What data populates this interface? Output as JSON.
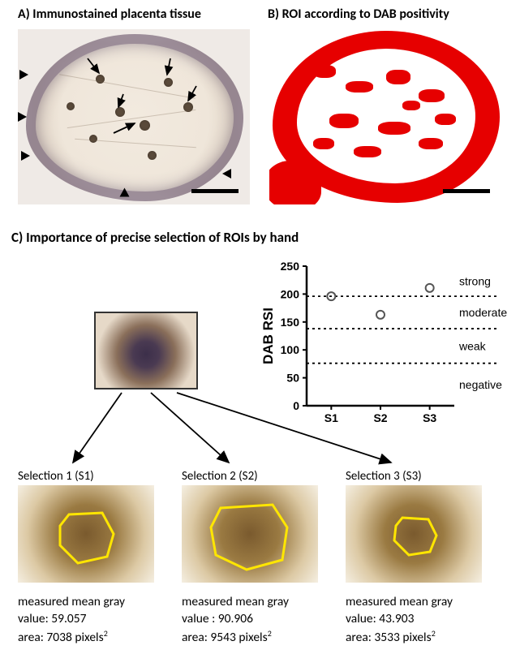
{
  "panelA": {
    "title": "A)   Immunostained placenta tissue"
  },
  "panelB": {
    "title": "B)   ROI according to DAB positivity"
  },
  "panelC": {
    "title": "C) Importance of precise selection of ROIs by hand",
    "chart": {
      "type": "scatter",
      "ylabel": "DAB RSI",
      "ylim": [
        0,
        250
      ],
      "ytick_step": 50,
      "yticks": [
        0,
        50,
        100,
        150,
        200,
        250
      ],
      "xticks": [
        "S1",
        "S2",
        "S3"
      ],
      "points": [
        {
          "x": "S1",
          "y": 196
        },
        {
          "x": "S2",
          "y": 163
        },
        {
          "x": "S3",
          "y": 211
        }
      ],
      "bands": [
        {
          "label": "strong",
          "y": 196
        },
        {
          "label": "moderate",
          "y": 138
        },
        {
          "label": "weak",
          "y": 76
        },
        {
          "label": "negative",
          "y": 30
        }
      ],
      "marker_color": "#555555",
      "marker_style": "open-circle",
      "axis_color": "#000000",
      "title_fontsize": 15,
      "label_fontsize": 16
    },
    "selections": [
      {
        "name": "Selection 1 (S1)",
        "mean_gray_label": "measured mean gray",
        "value_label": "value: 59.057",
        "area_label": "area: 7038 pixels",
        "area_exp": "2"
      },
      {
        "name": "Selection 2 (S2)",
        "mean_gray_label": "measured mean gray",
        "value_label": "value : 90.906",
        "area_label": "area: 9543 pixels",
        "area_exp": "2"
      },
      {
        "name": "Selection 3 (S3)",
        "mean_gray_label": "measured mean gray",
        "value_label": "value: 43.903",
        "area_label": "area: 3533 pixels",
        "area_exp": "2"
      }
    ]
  }
}
